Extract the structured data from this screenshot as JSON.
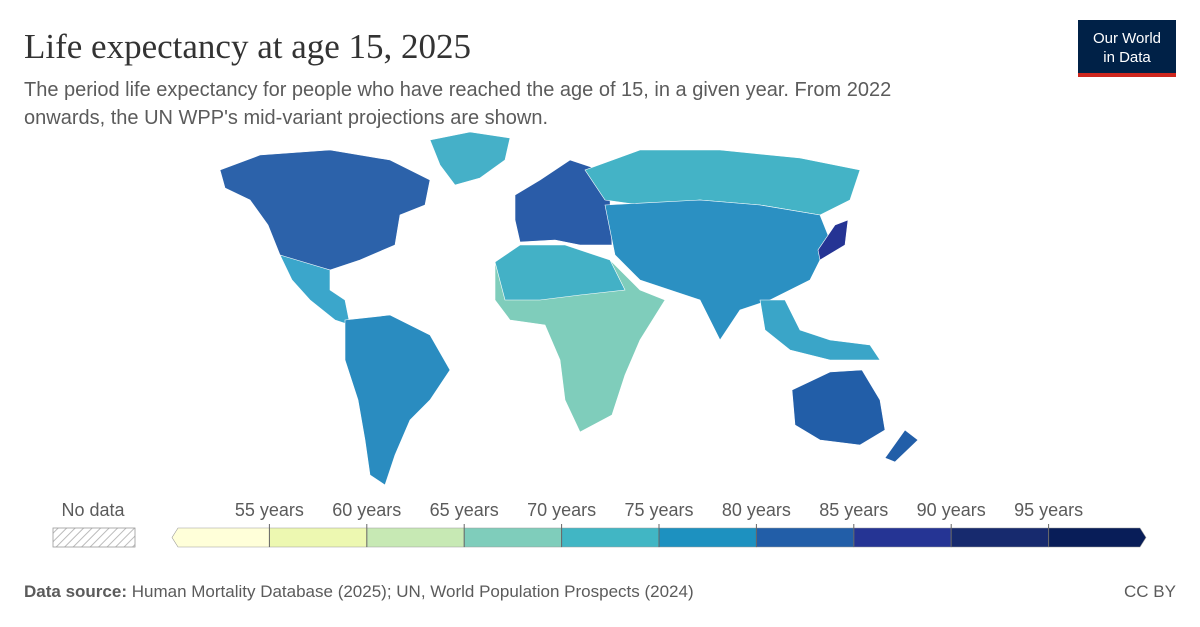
{
  "header": {
    "title": "Life expectancy at age 15, 2025",
    "subtitle": [
      "The period life expectancy for people who have reached the age of 15, in a given year. From 2022",
      "onwards, the UN WPP's mid-variant projections are shown."
    ]
  },
  "logo": {
    "lines": [
      "Our World",
      "in Data"
    ]
  },
  "legend": {
    "no_data_label": "No data",
    "lim": [
      50,
      100
    ],
    "ticks": [
      {
        "value": 55,
        "label": "55 years"
      },
      {
        "value": 60,
        "label": "60 years"
      },
      {
        "value": 65,
        "label": "65 years"
      },
      {
        "value": 70,
        "label": "70 years"
      },
      {
        "value": 75,
        "label": "75 years"
      },
      {
        "value": 80,
        "label": "80 years"
      },
      {
        "value": 85,
        "label": "85 years"
      },
      {
        "value": 90,
        "label": "90 years"
      },
      {
        "value": 95,
        "label": "95 years"
      }
    ],
    "colors": [
      "#ffffd9",
      "#edf8b1",
      "#c7e9b4",
      "#7fcdbb",
      "#41b6c4",
      "#1d91c0",
      "#225ea8",
      "#253494",
      "#172a6e",
      "#081d58"
    ]
  },
  "footer": {
    "source_label": "Data source:",
    "source_text": "Human Mortality Database (2025); UN, World Population Prospects (2024)",
    "license": "CC BY"
  }
}
